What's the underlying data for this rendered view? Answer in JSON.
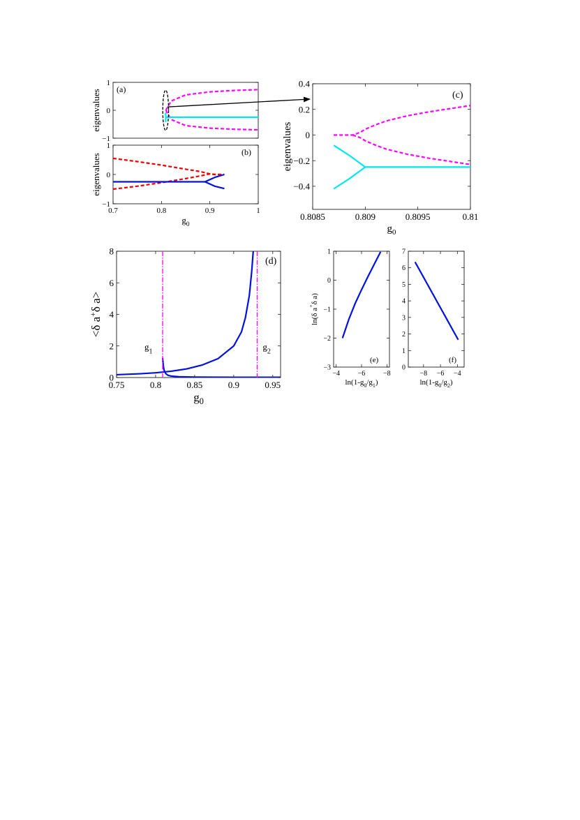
{
  "colors": {
    "magenta": "#ff00ff",
    "cyan": "#00e5ee",
    "blue": "#0011dd",
    "red": "#ee0000",
    "black": "#000000"
  },
  "chart_data": [
    {
      "id": "a",
      "panel_label": "(a)",
      "type": "line",
      "xlabel": "",
      "ylabel": "eigenvalues",
      "xlim": [
        0.7,
        1.0
      ],
      "ylim": [
        -1,
        1
      ],
      "xticks": [],
      "yticks": [
        {
          "v": -1,
          "label": "−1"
        },
        {
          "v": 0,
          "label": "0"
        },
        {
          "v": 1,
          "label": "1"
        }
      ],
      "series": [
        {
          "style": "dash",
          "color": "magenta",
          "x": [
            0.809,
            0.82,
            0.85,
            0.9,
            0.95,
            1.0
          ],
          "y": [
            0.0,
            0.33,
            0.55,
            0.66,
            0.71,
            0.74
          ]
        },
        {
          "style": "dash",
          "color": "magenta",
          "x": [
            0.809,
            0.82,
            0.85,
            0.9,
            0.95,
            1.0
          ],
          "y": [
            0.0,
            -0.33,
            -0.55,
            -0.64,
            -0.68,
            -0.7
          ]
        },
        {
          "style": "solid",
          "color": "cyan",
          "x": [
            0.8087,
            0.809,
            1.0
          ],
          "y": [
            -0.08,
            -0.25,
            -0.25
          ]
        },
        {
          "style": "solid",
          "color": "cyan",
          "x": [
            0.8087,
            0.809
          ],
          "y": [
            -0.42,
            -0.25
          ]
        }
      ],
      "ellipse": {
        "x": 0.8087,
        "y": 0.0,
        "rx": 0.006,
        "ry": 0.72
      },
      "arrow": {
        "from": [
          0.8125,
          0.12
        ],
        "to_panel": "c"
      }
    },
    {
      "id": "b",
      "panel_label": "(b)",
      "type": "line",
      "xlabel": "g",
      "xlabel_sub": "0",
      "ylabel": "eigenvalues",
      "xlim": [
        0.7,
        1.0
      ],
      "ylim": [
        -1,
        1
      ],
      "xticks": [
        {
          "v": 0.7,
          "label": "0.7"
        },
        {
          "v": 0.8,
          "label": "0.8"
        },
        {
          "v": 0.9,
          "label": "0.9"
        },
        {
          "v": 1.0,
          "label": "1"
        }
      ],
      "yticks": [
        {
          "v": -1,
          "label": "−1"
        },
        {
          "v": 0,
          "label": "0"
        },
        {
          "v": 1,
          "label": "1"
        }
      ],
      "series": [
        {
          "style": "dash",
          "color": "red",
          "x": [
            0.7,
            0.75,
            0.8,
            0.85,
            0.88,
            0.9,
            0.91,
            0.93
          ],
          "y": [
            0.55,
            0.44,
            0.32,
            0.18,
            0.1,
            0.02,
            0.0,
            0.0
          ]
        },
        {
          "style": "dash",
          "color": "red",
          "x": [
            0.7,
            0.75,
            0.8,
            0.85,
            0.88,
            0.9,
            0.91,
            0.93
          ],
          "y": [
            -0.5,
            -0.4,
            -0.28,
            -0.14,
            -0.05,
            0.02,
            0.0,
            0.0
          ]
        },
        {
          "style": "solid",
          "color": "blue",
          "x": [
            0.7,
            0.89,
            0.91,
            0.93
          ],
          "y": [
            -0.25,
            -0.25,
            -0.1,
            -0.0
          ]
        },
        {
          "style": "solid",
          "color": "blue",
          "x": [
            0.89,
            0.91,
            0.93
          ],
          "y": [
            -0.25,
            -0.4,
            -0.48
          ]
        }
      ]
    },
    {
      "id": "c",
      "panel_label": "(c)",
      "type": "line",
      "xlabel": "g",
      "xlabel_sub": "0",
      "ylabel": "eigenvalues",
      "xlim": [
        0.8085,
        0.81
      ],
      "ylim": [
        -0.58,
        0.4
      ],
      "xticks": [
        {
          "v": 0.8085,
          "label": "0.8085"
        },
        {
          "v": 0.809,
          "label": "0.809"
        },
        {
          "v": 0.8095,
          "label": "0.8095"
        },
        {
          "v": 0.81,
          "label": "0.81"
        }
      ],
      "yticks": [
        {
          "v": -0.4,
          "label": "−0.4"
        },
        {
          "v": -0.2,
          "label": "−0.2"
        },
        {
          "v": 0,
          "label": "0"
        },
        {
          "v": 0.2,
          "label": "0.2"
        },
        {
          "v": 0.4,
          "label": "0.4"
        }
      ],
      "series": [
        {
          "style": "dash",
          "color": "magenta",
          "x": [
            0.8087,
            0.8088,
            0.80888,
            0.80895,
            0.809,
            0.8091,
            0.8092,
            0.8094,
            0.8096,
            0.8098,
            0.81
          ],
          "y": [
            0.0,
            0.0,
            0.0,
            0.02,
            0.045,
            0.08,
            0.11,
            0.15,
            0.18,
            0.205,
            0.23
          ]
        },
        {
          "style": "dash",
          "color": "magenta",
          "x": [
            0.80888,
            0.80895,
            0.809,
            0.8091,
            0.8092,
            0.8094,
            0.8096,
            0.8098,
            0.81
          ],
          "y": [
            0.0,
            -0.02,
            -0.045,
            -0.08,
            -0.11,
            -0.15,
            -0.18,
            -0.205,
            -0.23
          ]
        },
        {
          "style": "solid",
          "color": "cyan",
          "x": [
            0.8087,
            0.80885,
            0.80895,
            0.809,
            0.81
          ],
          "y": [
            -0.08,
            -0.16,
            -0.22,
            -0.25,
            -0.25
          ]
        },
        {
          "style": "solid",
          "color": "cyan",
          "x": [
            0.8087,
            0.80885,
            0.80895,
            0.809
          ],
          "y": [
            -0.42,
            -0.34,
            -0.28,
            -0.25
          ]
        }
      ]
    },
    {
      "id": "d",
      "panel_label": "(d)",
      "type": "line",
      "xlabel": "g",
      "xlabel_sub": "0",
      "ylabel": "<δ a",
      "ylabel_sup": "+",
      "ylabel_tail": "δ a>",
      "xlim": [
        0.75,
        0.96
      ],
      "ylim": [
        0,
        8
      ],
      "xticks": [
        {
          "v": 0.75,
          "label": "0.75"
        },
        {
          "v": 0.8,
          "label": "0.8"
        },
        {
          "v": 0.85,
          "label": "0.85"
        },
        {
          "v": 0.9,
          "label": "0.9"
        },
        {
          "v": 0.95,
          "label": "0.95"
        }
      ],
      "yticks": [
        {
          "v": 0,
          "label": "0"
        },
        {
          "v": 2,
          "label": "2"
        },
        {
          "v": 4,
          "label": "4"
        },
        {
          "v": 6,
          "label": "6"
        },
        {
          "v": 8,
          "label": "8"
        }
      ],
      "vlines": [
        {
          "x": 0.809,
          "label": "g",
          "label_sub": "1"
        },
        {
          "x": 0.93,
          "label": "g",
          "label_sub": "2"
        }
      ],
      "series": [
        {
          "style": "solid",
          "color": "blue",
          "x": [
            0.75,
            0.78,
            0.8,
            0.82,
            0.84,
            0.86,
            0.88,
            0.9,
            0.91,
            0.915,
            0.92,
            0.923,
            0.925
          ],
          "y": [
            0.18,
            0.24,
            0.3,
            0.4,
            0.55,
            0.8,
            1.2,
            2.0,
            2.9,
            3.8,
            5.2,
            6.7,
            8.0
          ]
        },
        {
          "style": "solid",
          "color": "blue",
          "x": [
            0.809,
            0.8095,
            0.81,
            0.811,
            0.813,
            0.816,
            0.82,
            0.83,
            0.85,
            0.9,
            0.96
          ],
          "y": [
            1.25,
            0.95,
            0.7,
            0.45,
            0.25,
            0.14,
            0.09,
            0.05,
            0.03,
            0.02,
            0.02
          ]
        }
      ]
    },
    {
      "id": "e",
      "panel_label": "(e)",
      "type": "line",
      "xlabel": "ln(1-g",
      "xlabel_sub": "0",
      "xlabel_mid": "/g",
      "xlabel_sub2": "1",
      "xlabel_tail": ")",
      "ylabel": "ln(δ a",
      "ylabel_sup": "+",
      "ylabel_tail": "δ a)",
      "xlim": [
        -3.8,
        -8.2
      ],
      "ylim": [
        -3,
        1
      ],
      "xticks": [
        {
          "v": -4,
          "label": "−4"
        },
        {
          "v": -6,
          "label": "−6"
        },
        {
          "v": -8,
          "label": "−8"
        }
      ],
      "yticks": [
        {
          "v": -3,
          "label": "−3"
        },
        {
          "v": -2,
          "label": "−2"
        },
        {
          "v": -1,
          "label": "−1"
        },
        {
          "v": 0,
          "label": "0"
        },
        {
          "v": 1,
          "label": "1"
        }
      ],
      "series": [
        {
          "style": "solid",
          "color": "blue",
          "x": [
            -4.5,
            -5.0,
            -5.5,
            -6.0,
            -6.5,
            -7.0,
            -7.5
          ],
          "y": [
            -2.0,
            -1.35,
            -0.8,
            -0.33,
            0.12,
            0.55,
            0.98
          ]
        }
      ]
    },
    {
      "id": "f",
      "panel_label": "(f)",
      "type": "line",
      "xlabel": "ln(1-g",
      "xlabel_sub": "0",
      "xlabel_mid": "/g",
      "xlabel_sub2": "2",
      "xlabel_tail": ")",
      "ylabel": "",
      "xlim": [
        -9.8,
        -3.2
      ],
      "ylim": [
        0,
        7
      ],
      "xticks": [
        {
          "v": -8,
          "label": "−8"
        },
        {
          "v": -6,
          "label": "−6"
        },
        {
          "v": -4,
          "label": "−4"
        }
      ],
      "yticks": [
        {
          "v": 0,
          "label": "0"
        },
        {
          "v": 1,
          "label": "1"
        },
        {
          "v": 2,
          "label": "2"
        },
        {
          "v": 3,
          "label": "3"
        },
        {
          "v": 4,
          "label": "4"
        },
        {
          "v": 5,
          "label": "5"
        },
        {
          "v": 6,
          "label": "6"
        },
        {
          "v": 7,
          "label": "7"
        }
      ],
      "series": [
        {
          "style": "solid",
          "color": "blue",
          "x": [
            -9.0,
            -3.9
          ],
          "y": [
            6.35,
            1.65
          ]
        }
      ]
    }
  ]
}
